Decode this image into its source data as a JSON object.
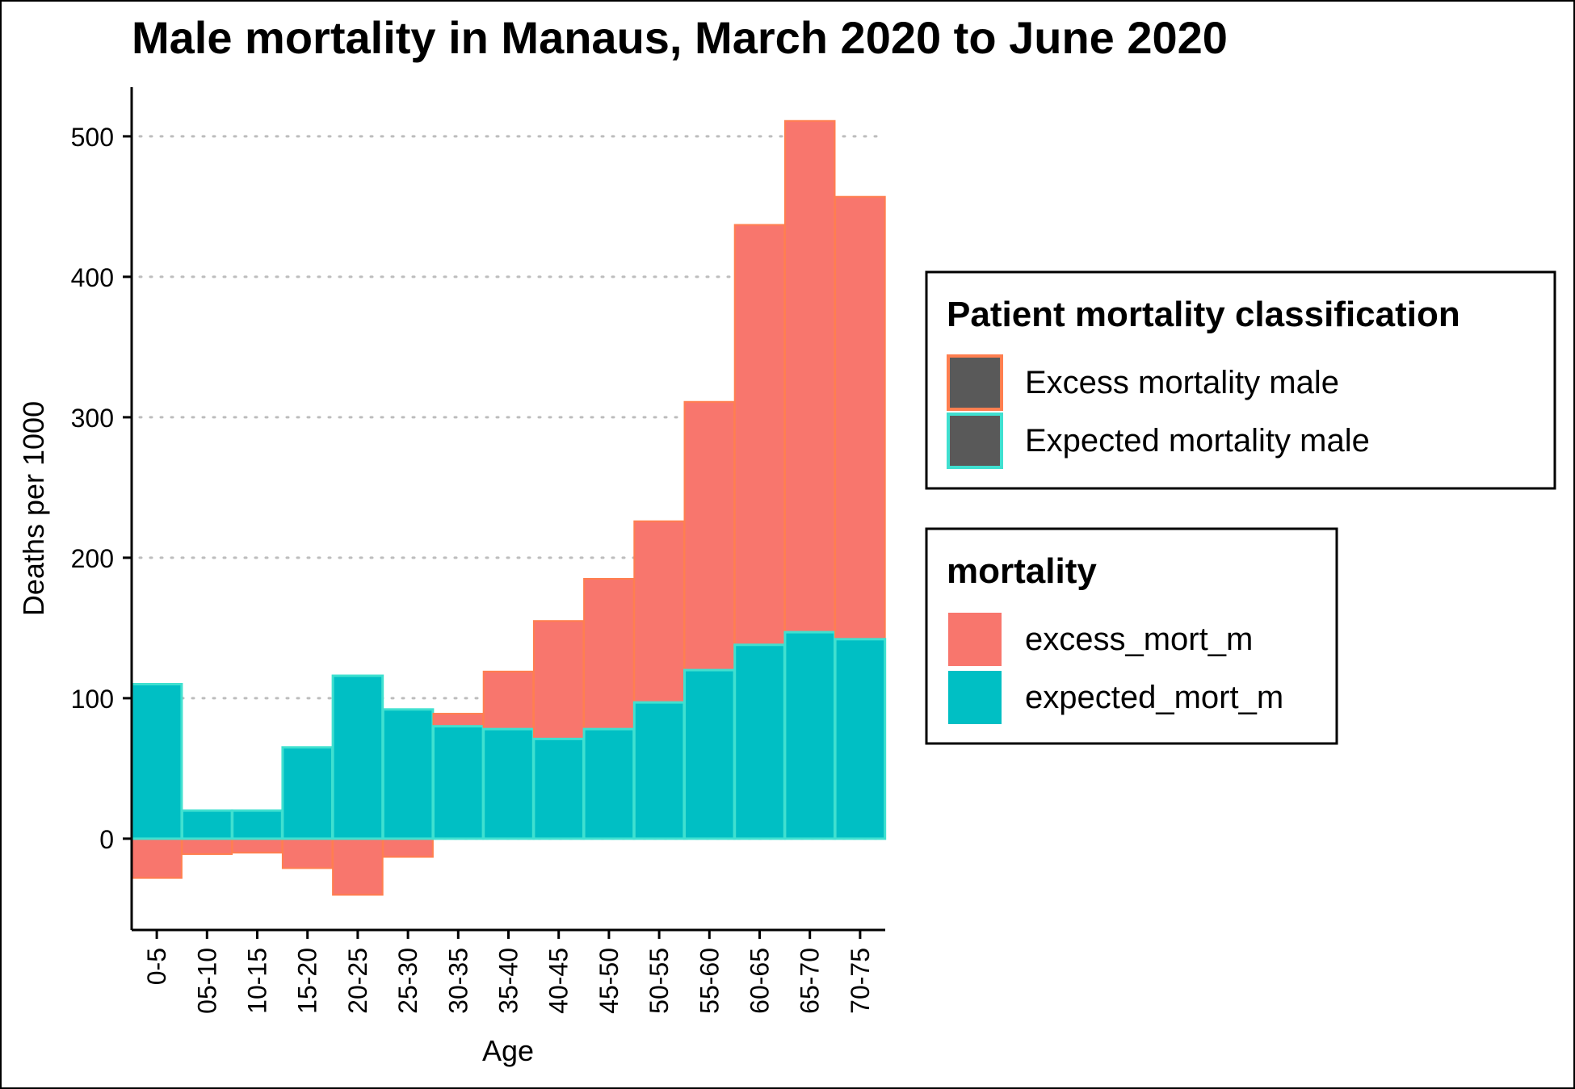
{
  "chart_data": {
    "type": "bar",
    "stacked": true,
    "title": "Male mortality in Manaus, March 2020 to June 2020",
    "xlabel": "Age",
    "ylabel": "Deaths per 1000",
    "ylim": [
      -65,
      535
    ],
    "yticks": [
      0,
      100,
      200,
      300,
      400,
      500
    ],
    "grid": "horizontal dotted",
    "legend_placement": "right",
    "categories": [
      "0-5",
      "05-10",
      "10-15",
      "15-20",
      "20-25",
      "25-30",
      "30-35",
      "35-40",
      "40-45",
      "45-50",
      "50-55",
      "55-60",
      "60-65",
      "65-70",
      "70-75"
    ],
    "series": [
      {
        "name": "expected_mort_m",
        "fill": "#00BFC4",
        "outline": "#40E0D0",
        "values": [
          110,
          20,
          20,
          65,
          116,
          92,
          80,
          78,
          71,
          78,
          97,
          120,
          138,
          147,
          142
        ]
      },
      {
        "name": "excess_mort_m",
        "fill": "#F8766D",
        "outline": "#FF7F50",
        "values": [
          -28,
          -11,
          -10,
          -21,
          -40,
          -13,
          9,
          41,
          84,
          107,
          129,
          191,
          299,
          364,
          315
        ]
      }
    ],
    "legends": [
      {
        "title": "Patient mortality classification",
        "items": [
          {
            "label": "Excess mortality male",
            "fill": "#595959",
            "outline": "#FF7F50"
          },
          {
            "label": "Expected mortality male",
            "fill": "#595959",
            "outline": "#40E0D0"
          }
        ]
      },
      {
        "title": "mortality",
        "items": [
          {
            "label": "excess_mort_m",
            "fill": "#F8766D"
          },
          {
            "label": "expected_mort_m",
            "fill": "#00BFC4"
          }
        ]
      }
    ]
  }
}
